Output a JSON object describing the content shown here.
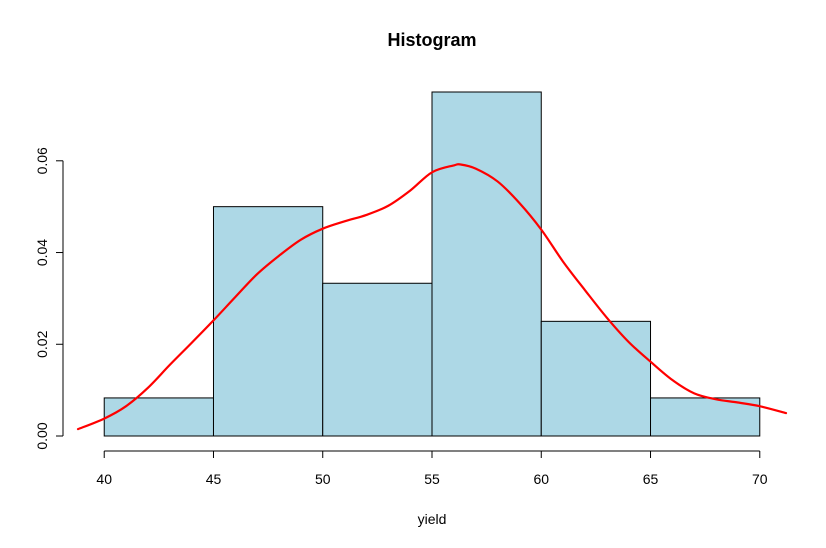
{
  "chart_data": {
    "type": "bar",
    "title": "Histogram",
    "xlabel": "yield",
    "ylabel": "",
    "xlim": [
      38.8,
      71.2
    ],
    "ylim": [
      0,
      0.075
    ],
    "x_ticks": [
      40,
      45,
      50,
      55,
      60,
      65,
      70
    ],
    "y_ticks": [
      0.0,
      0.02,
      0.04,
      0.06
    ],
    "x_tick_labels": [
      "40",
      "45",
      "50",
      "55",
      "60",
      "65",
      "70"
    ],
    "y_tick_labels": [
      "0.00",
      "0.02",
      "0.04",
      "0.06"
    ],
    "bins": [
      {
        "x0": 40,
        "x1": 45,
        "density": 0.0083
      },
      {
        "x0": 45,
        "x1": 50,
        "density": 0.05
      },
      {
        "x0": 50,
        "x1": 55,
        "density": 0.0333
      },
      {
        "x0": 55,
        "x1": 60,
        "density": 0.075
      },
      {
        "x0": 60,
        "x1": 65,
        "density": 0.025
      },
      {
        "x0": 65,
        "x1": 70,
        "density": 0.0083
      }
    ],
    "bar_color": "#add8e6",
    "bar_edge_color": "#000000",
    "series": [
      {
        "type": "line",
        "color": "#ff0000",
        "x": [
          38.8,
          40.0,
          41.0,
          42.0,
          43.0,
          44.0,
          45.0,
          46.0,
          47.0,
          48.0,
          49.0,
          50.0,
          51.0,
          52.0,
          53.0,
          54.0,
          55.0,
          56.0,
          56.3,
          57.0,
          58.0,
          59.0,
          60.0,
          61.0,
          62.0,
          63.0,
          64.0,
          65.0,
          66.0,
          67.0,
          68.0,
          69.0,
          70.0,
          71.2
        ],
        "y": [
          0.0015,
          0.0038,
          0.0065,
          0.0105,
          0.0155,
          0.0203,
          0.0252,
          0.0303,
          0.0353,
          0.0393,
          0.0428,
          0.0452,
          0.0468,
          0.0482,
          0.0502,
          0.0535,
          0.0575,
          0.059,
          0.0592,
          0.0583,
          0.0555,
          0.0508,
          0.045,
          0.038,
          0.0318,
          0.0258,
          0.0205,
          0.0162,
          0.0122,
          0.0093,
          0.008,
          0.0073,
          0.0065,
          0.005
        ]
      }
    ]
  }
}
